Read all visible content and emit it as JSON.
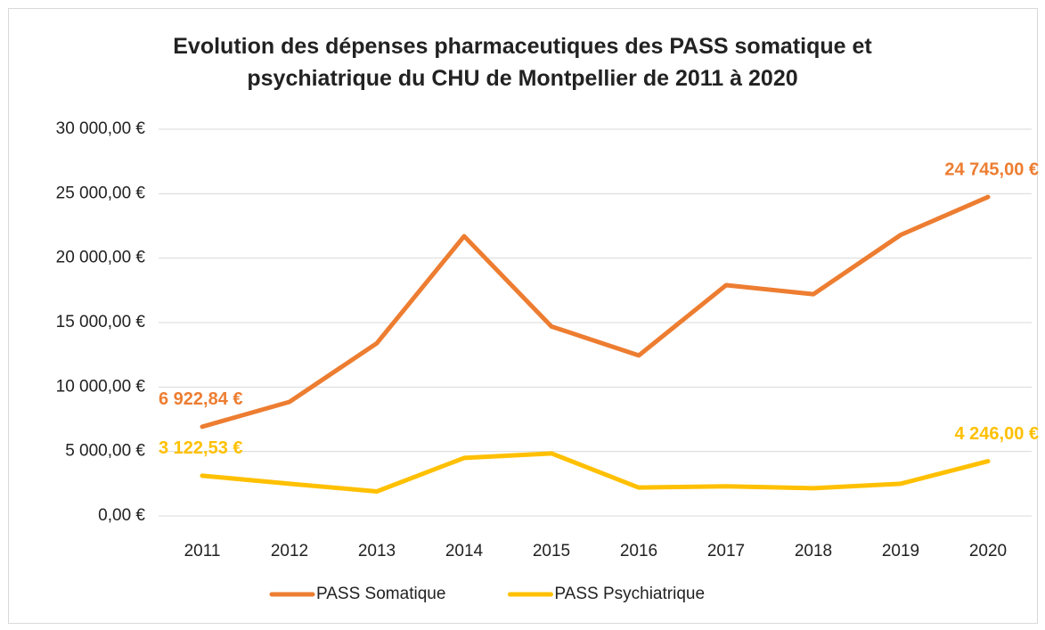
{
  "chart_data": {
    "type": "line",
    "title": "Evolution des dépenses pharmaceutiques des PASS somatique et psychiatrique du CHU de Montpellier de 2011 à 2020",
    "categories": [
      "2011",
      "2012",
      "2013",
      "2014",
      "2015",
      "2016",
      "2017",
      "2018",
      "2019",
      "2020"
    ],
    "series": [
      {
        "name": "PASS Somatique",
        "color": "#ED7D31",
        "values": [
          6922.84,
          8850,
          13400,
          21700,
          14700,
          12450,
          17900,
          17200,
          21800,
          24745
        ],
        "value_labels": [
          "6 922,84 €",
          null,
          null,
          null,
          null,
          null,
          null,
          null,
          null,
          "24 745,00 €"
        ]
      },
      {
        "name": "PASS Psychiatrique",
        "color": "#FFC000",
        "values": [
          3122.53,
          2500,
          1900,
          4500,
          4850,
          2200,
          2300,
          2150,
          2500,
          4246
        ],
        "value_labels": [
          "3 122,53 €",
          null,
          null,
          null,
          null,
          null,
          null,
          null,
          null,
          "4 246,00 €"
        ]
      }
    ],
    "ylim": [
      0,
      30000
    ],
    "yticks": [
      {
        "value": 0,
        "label": "0,00 €"
      },
      {
        "value": 5000,
        "label": "5 000,00 €"
      },
      {
        "value": 10000,
        "label": "10 000,00 €"
      },
      {
        "value": 15000,
        "label": "15 000,00 €"
      },
      {
        "value": 20000,
        "label": "20 000,00 €"
      },
      {
        "value": 25000,
        "label": "25 000,00 €"
      },
      {
        "value": 30000,
        "label": "30 000,00 €"
      }
    ],
    "grid": true,
    "legend": "bottom"
  }
}
